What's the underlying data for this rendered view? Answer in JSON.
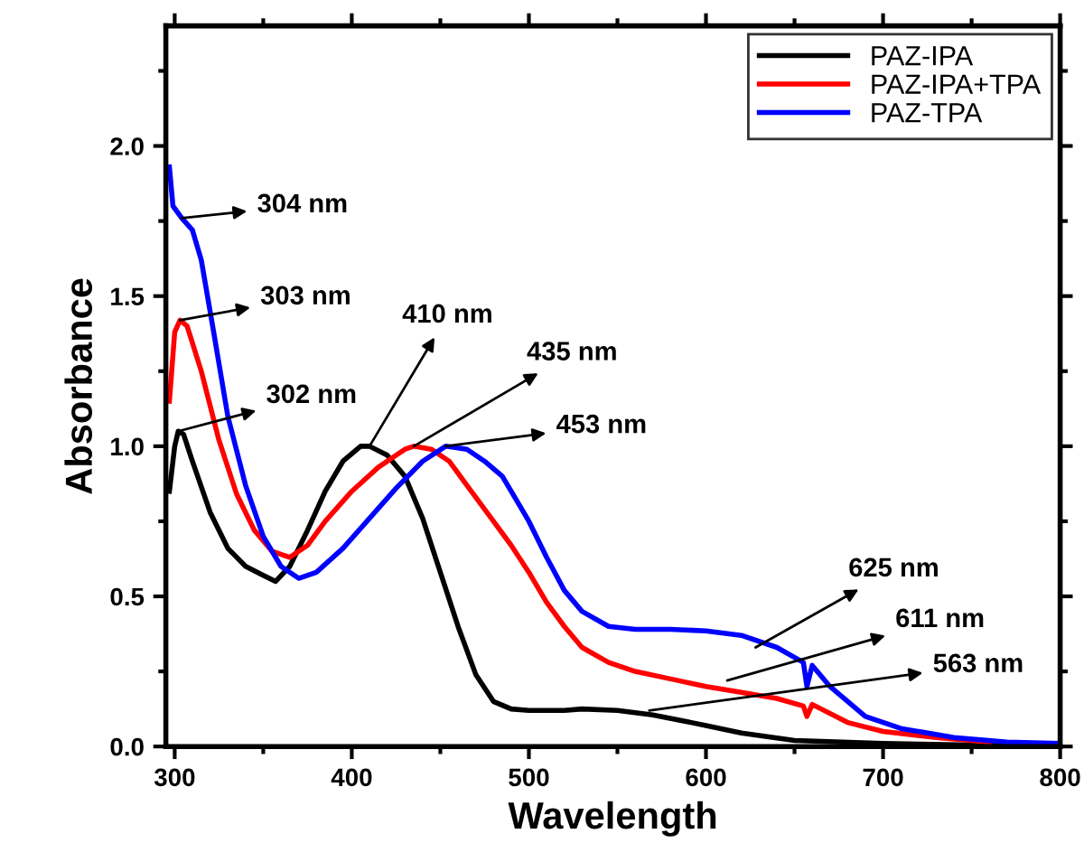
{
  "chart_data": {
    "type": "line",
    "xlabel": "Wavelength",
    "ylabel": "Absorbance",
    "xlim": [
      295,
      800
    ],
    "ylim": [
      0,
      2.4
    ],
    "xticks": [
      300,
      400,
      500,
      600,
      700,
      800
    ],
    "yticks": [
      {
        "value": 0,
        "label": "0.0"
      },
      {
        "value": 0.5,
        "label": "0.5"
      },
      {
        "value": 1.0,
        "label": "1.0"
      },
      {
        "value": 1.5,
        "label": "1.5"
      },
      {
        "value": 2.0,
        "label": "2.0"
      }
    ],
    "legend": "top right",
    "grid": false,
    "marker": "none",
    "line_style": "solid",
    "series": [
      {
        "name": "PAZ-IPA",
        "color": "#000000",
        "x": [
          297,
          300,
          302,
          305,
          310,
          320,
          330,
          340,
          350,
          357,
          365,
          375,
          385,
          395,
          405,
          410,
          420,
          430,
          440,
          450,
          460,
          470,
          480,
          490,
          500,
          520,
          530,
          550,
          570,
          600,
          620,
          650,
          700,
          750,
          800
        ],
        "values": [
          0.85,
          1.0,
          1.05,
          1.04,
          0.95,
          0.78,
          0.66,
          0.6,
          0.57,
          0.55,
          0.6,
          0.72,
          0.85,
          0.95,
          1.0,
          1.0,
          0.97,
          0.9,
          0.76,
          0.58,
          0.4,
          0.24,
          0.15,
          0.125,
          0.12,
          0.12,
          0.125,
          0.12,
          0.105,
          0.07,
          0.045,
          0.02,
          0.01,
          0.005,
          0.0
        ]
      },
      {
        "name": "PAZ-IPA+TPA",
        "color": "#ff0000",
        "x": [
          297,
          300,
          303,
          307,
          315,
          325,
          335,
          345,
          355,
          365,
          375,
          385,
          400,
          415,
          430,
          435,
          445,
          455,
          465,
          480,
          490,
          500,
          510,
          520,
          530,
          545,
          560,
          580,
          600,
          620,
          640,
          655,
          657,
          660,
          680,
          700,
          730,
          760
        ],
        "values": [
          1.15,
          1.38,
          1.42,
          1.4,
          1.25,
          1.02,
          0.84,
          0.72,
          0.65,
          0.63,
          0.67,
          0.75,
          0.85,
          0.93,
          0.99,
          1.0,
          0.99,
          0.95,
          0.87,
          0.75,
          0.67,
          0.58,
          0.48,
          0.4,
          0.33,
          0.28,
          0.25,
          0.225,
          0.2,
          0.18,
          0.16,
          0.135,
          0.1,
          0.14,
          0.08,
          0.05,
          0.03,
          0.015
        ]
      },
      {
        "name": "PAZ-TPA",
        "color": "#0000ff",
        "x": [
          297,
          299,
          304,
          310,
          315,
          322,
          330,
          340,
          350,
          360,
          370,
          380,
          395,
          410,
          425,
          440,
          453,
          465,
          475,
          485,
          490,
          500,
          510,
          520,
          530,
          545,
          560,
          580,
          600,
          620,
          640,
          655,
          657,
          660,
          670,
          690,
          710,
          740,
          770,
          800
        ],
        "values": [
          1.93,
          1.8,
          1.76,
          1.72,
          1.62,
          1.38,
          1.1,
          0.87,
          0.7,
          0.6,
          0.56,
          0.58,
          0.66,
          0.76,
          0.86,
          0.95,
          1.0,
          0.99,
          0.95,
          0.9,
          0.85,
          0.75,
          0.63,
          0.52,
          0.45,
          0.4,
          0.39,
          0.39,
          0.385,
          0.37,
          0.33,
          0.28,
          0.2,
          0.27,
          0.2,
          0.1,
          0.06,
          0.03,
          0.015,
          0.01
        ]
      }
    ],
    "annotations": [
      {
        "text": "304 nm",
        "x": 304,
        "y": 1.76
      },
      {
        "text": "303 nm",
        "x": 303,
        "y": 1.42
      },
      {
        "text": "302 nm",
        "x": 302,
        "y": 1.05
      },
      {
        "text": "410 nm",
        "x": 410,
        "y": 1.0
      },
      {
        "text": "435 nm",
        "x": 435,
        "y": 1.0
      },
      {
        "text": "453 nm",
        "x": 453,
        "y": 1.0
      },
      {
        "text": "625 nm",
        "x": 628,
        "y": 0.33
      },
      {
        "text": "611 nm",
        "x": 612,
        "y": 0.22
      },
      {
        "text": "563 nm",
        "x": 568,
        "y": 0.12
      }
    ]
  }
}
